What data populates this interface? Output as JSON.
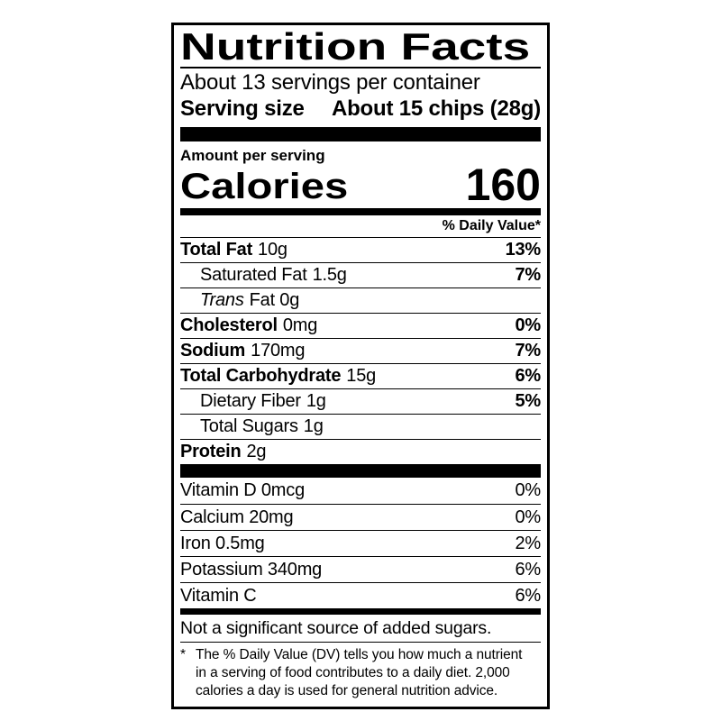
{
  "colors": {
    "ink": "#000000",
    "paper": "#ffffff"
  },
  "label": {
    "title": "Nutrition Facts",
    "servings_per_container": "About 13 servings per container",
    "serving_size": {
      "label": "Serving size",
      "value": "About 15 chips (28g)"
    },
    "amount_per_serving": "Amount per serving",
    "calories": {
      "label": "Calories",
      "value": "160"
    },
    "daily_value_header": "% Daily Value*",
    "nutrients": [
      {
        "name": "Total Fat",
        "amount": "10g",
        "dv": "13%"
      },
      {
        "name": "Saturated Fat",
        "amount": "1.5g",
        "dv": "7%"
      },
      {
        "name": "Trans",
        "amount": "Fat 0g",
        "dv": ""
      },
      {
        "name": "Cholesterol",
        "amount": "0mg",
        "dv": "0%"
      },
      {
        "name": "Sodium",
        "amount": "170mg",
        "dv": "7%"
      },
      {
        "name": "Total Carbohydrate",
        "amount": "15g",
        "dv": "6%"
      },
      {
        "name": "Dietary Fiber",
        "amount": "1g",
        "dv": "5%"
      },
      {
        "name": "Total Sugars",
        "amount": "1g",
        "dv": ""
      },
      {
        "name": "Protein",
        "amount": "2g",
        "dv": ""
      }
    ],
    "micronutrients": [
      {
        "name": "Vitamin D 0mcg",
        "dv": "0%"
      },
      {
        "name": "Calcium 20mg",
        "dv": "0%"
      },
      {
        "name": "Iron 0.5mg",
        "dv": "2%"
      },
      {
        "name": "Potassium 340mg",
        "dv": "6%"
      },
      {
        "name": "Vitamin C",
        "dv": "6%"
      }
    ],
    "not_significant_note": "Not a significant source of added sugars.",
    "footnote": {
      "marker": "*",
      "lines": [
        "The % Daily Value (DV) tells you how much a nutrient",
        "in a serving of food contributes to a daily diet. 2,000",
        "calories a day is used for general nutrition advice."
      ]
    }
  }
}
